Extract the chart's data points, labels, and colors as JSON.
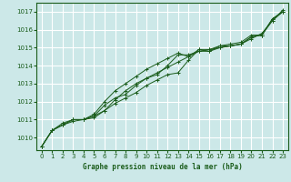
{
  "title": "Graphe pression niveau de la mer (hPa)",
  "background_color": "#cce8e8",
  "grid_color": "#ffffff",
  "line_color": "#1a5c1a",
  "xlim": [
    -0.5,
    23.5
  ],
  "ylim": [
    1009.3,
    1017.5
  ],
  "xticks": [
    0,
    1,
    2,
    3,
    4,
    5,
    6,
    7,
    8,
    9,
    10,
    11,
    12,
    13,
    14,
    15,
    16,
    17,
    18,
    19,
    20,
    21,
    22,
    23
  ],
  "yticks": [
    1010,
    1011,
    1012,
    1013,
    1014,
    1015,
    1016,
    1017
  ],
  "series": [
    [
      1009.5,
      1010.4,
      1010.7,
      1010.9,
      1011.0,
      1011.2,
      1011.5,
      1012.1,
      1012.6,
      1013.0,
      1013.3,
      1013.5,
      1014.0,
      1014.6,
      1014.6,
      1014.8,
      1014.9,
      1015.0,
      1015.1,
      1015.2,
      1015.6,
      1015.7,
      1016.5,
      1017.0
    ],
    [
      1009.5,
      1010.4,
      1010.8,
      1011.0,
      1011.0,
      1011.1,
      1011.5,
      1011.9,
      1012.2,
      1012.5,
      1012.9,
      1013.2,
      1013.5,
      1013.6,
      1014.3,
      1014.9,
      1014.8,
      1015.1,
      1015.2,
      1015.3,
      1015.7,
      1015.7,
      1016.6,
      1017.0
    ],
    [
      1009.5,
      1010.4,
      1010.7,
      1011.0,
      1011.0,
      1011.3,
      1012.0,
      1012.6,
      1013.0,
      1013.4,
      1013.8,
      1014.1,
      1014.4,
      1014.7,
      1014.5,
      1014.8,
      1014.8,
      1015.0,
      1015.1,
      1015.2,
      1015.5,
      1015.8,
      1016.5,
      1017.1
    ],
    [
      1009.5,
      1010.4,
      1010.7,
      1011.0,
      1011.0,
      1011.2,
      1011.8,
      1012.2,
      1012.4,
      1012.9,
      1013.3,
      1013.6,
      1013.9,
      1014.2,
      1014.5,
      1014.9,
      1014.9,
      1015.1,
      1015.1,
      1015.2,
      1015.6,
      1015.7,
      1016.6,
      1017.0
    ]
  ]
}
